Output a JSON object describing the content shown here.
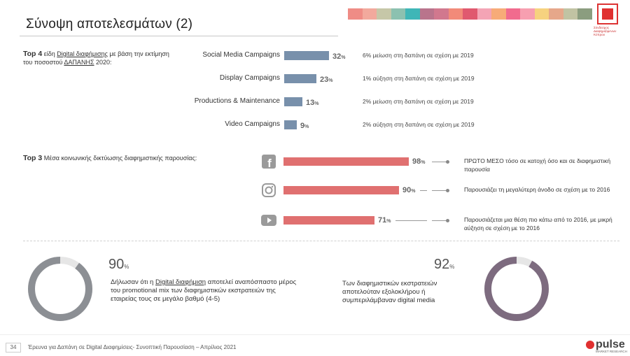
{
  "header": {
    "title": "Σύνοψη αποτελεσμάτων (2)",
    "swatch_colors": [
      "#ef8c86",
      "#f2a99d",
      "#c6c7a8",
      "#8cc1b0",
      "#3fb6b7",
      "#b9748c",
      "#d1788e",
      "#f28a79",
      "#e0596f",
      "#f4a4b5",
      "#f7ab78",
      "#f16b8e",
      "#f79fb0",
      "#f6d27f",
      "#e6a78a",
      "#c1c3a3",
      "#8b9d7f"
    ],
    "logo_text": "Σύνδεσμος Διαφημιζόμενων Κύπρου"
  },
  "section1": {
    "intro_bold": "Top 4",
    "intro_pre": " είδη ",
    "intro_link": "Digital διαφήμισης",
    "intro_mid": " με βάση την εκτίμηση του ποσοστού ",
    "intro_link2": "ΔΑΠΑΝΗΣ",
    "intro_post": " 2020:",
    "rows": [
      {
        "label": "Social Media Campaigns",
        "value": "32",
        "unit": "%",
        "note_num": "6",
        "note_unit": "%",
        "note_text": " μείωση στη δαπάνη σε σχέση με 2019"
      },
      {
        "label": "Display Campaigns",
        "value": "23",
        "unit": "%",
        "note_num": "1",
        "note_unit": "%",
        "note_text": " αύξηση στη δαπάνη σε σχέση με 2019"
      },
      {
        "label": "Productions & Maintenance",
        "value": "13",
        "unit": "%",
        "note_num": "2",
        "note_unit": "%",
        "note_text": " μείωση στη δαπάνη σε σχέση με 2019"
      },
      {
        "label": "Video Campaigns",
        "value": "9",
        "unit": "%",
        "note_num": "2",
        "note_unit": "%",
        "note_text": " αύξηση στη δαπάνη σε σχέση με 2019"
      }
    ]
  },
  "section2": {
    "intro_bold": "Top 3",
    "intro_text": " Μέσα κοινωνικής δικτύωσης διαφημιστικής παρουσίας:",
    "rows": [
      {
        "icon": "facebook-icon",
        "value": "98",
        "unit": "%",
        "note": "ΠΡΩΤΟ ΜΕΣΟ τόσο σε κατοχή όσο και σε διαφημιστική παρουσία"
      },
      {
        "icon": "instagram-icon",
        "value": "90",
        "unit": "%",
        "note": "Παρουσιάζει τη μεγαλύτερη άνοδο σε σχέση με το 2016"
      },
      {
        "icon": "youtube-icon",
        "value": "71",
        "unit": "%",
        "note": "Παρουσιάζεται μια θέση πιο κάτω από το 2016, με μικρή αύξηση  σε σχέση με το 2016"
      }
    ]
  },
  "rings": [
    {
      "value": "90",
      "unit": "%",
      "text_pre": "Δήλωσαν ότι η ",
      "text_link": "Digital διαφήμιση",
      "text_post": " αποτελεί αναπόσπαστο μέρος του promotional mix  των διαφημιστικών εκστρατειών της εταιρείας τους σε μεγάλο βαθμό (4-5)",
      "color": "#8c8f94"
    },
    {
      "value": "92",
      "unit": "%",
      "text": "Των διαφημιστικών εκστρατειών αποτελούταν εξολοκλήρου ή συμπεριλάμβαναν digital media",
      "color": "#7d6b7f"
    }
  ],
  "chart_data": [
    {
      "type": "bar",
      "categories": [
        "Social Media Campaigns",
        "Display Campaigns",
        "Productions & Maintenance",
        "Video Campaigns"
      ],
      "values": [
        32,
        23,
        13,
        9
      ]
    },
    {
      "type": "bar",
      "categories": [
        "Facebook",
        "Instagram",
        "YouTube"
      ],
      "values": [
        98,
        90,
        71
      ]
    },
    {
      "type": "pie",
      "values": [
        90,
        10
      ]
    },
    {
      "type": "pie",
      "values": [
        92,
        8
      ]
    }
  ],
  "footer": {
    "page": "34",
    "text": "Έρευνα για Δαπάνη σε Digital Διαφημίσεις- Συνοπτική Παρουσίαση – Απρίλιος 2021",
    "brand": "pulse",
    "brand_sub": "MARKET RESEARCH"
  }
}
